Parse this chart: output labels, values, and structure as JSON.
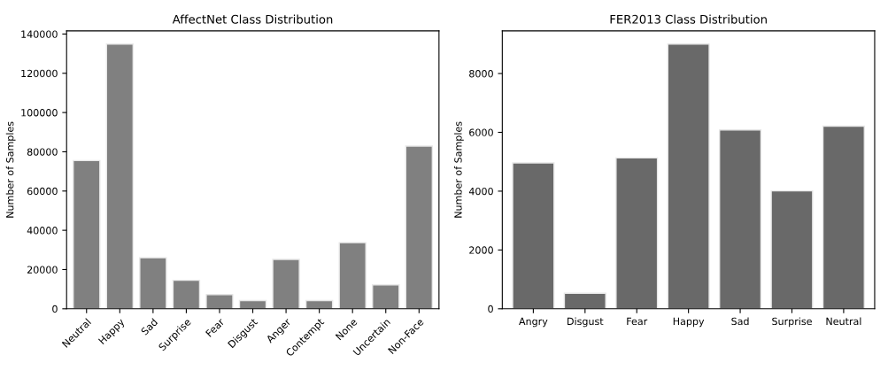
{
  "chart_data": [
    {
      "type": "bar",
      "title": "AffectNet Class Distribution",
      "ylabel": "Number of Samples",
      "categories": [
        "Neutral",
        "Happy",
        "Sad",
        "Surprise",
        "Fear",
        "Disgust",
        "Anger",
        "Contempt",
        "None",
        "Uncertain",
        "Non-Face"
      ],
      "values": [
        75500,
        134900,
        26000,
        14500,
        7200,
        4200,
        25200,
        4200,
        33700,
        12200,
        82900
      ],
      "color": "#808080",
      "ylim": [
        0,
        141600
      ],
      "yticks": [
        0,
        20000,
        40000,
        60000,
        80000,
        100000,
        120000,
        140000
      ]
    },
    {
      "type": "bar",
      "title": "FER2013 Class Distribution",
      "ylabel": "Number of Samples",
      "categories": [
        "Angry",
        "Disgust",
        "Fear",
        "Happy",
        "Sad",
        "Surprise",
        "Neutral"
      ],
      "values": [
        4960,
        530,
        5130,
        9000,
        6080,
        4010,
        6210
      ],
      "color": "#696969",
      "ylim": [
        0,
        9450
      ],
      "yticks": [
        0,
        2000,
        4000,
        6000,
        8000
      ]
    }
  ]
}
